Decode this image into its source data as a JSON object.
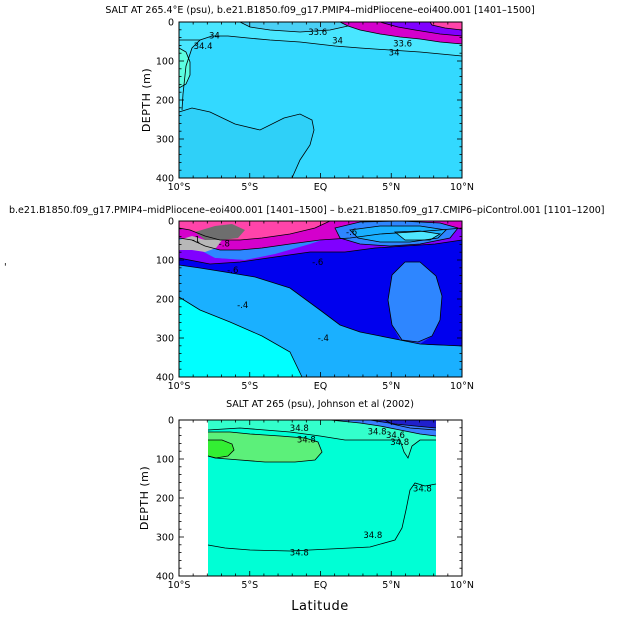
{
  "chart_data": [
    {
      "type": "contour",
      "title": "SALT AT 265.4°E (psu), b.e21.B1850.f09_g17.PMIP4–midPliocene–eoi400.001  [1401–1500]",
      "xlabel": "",
      "ylabel": "DEPTH  (m)",
      "x_range": [
        -10,
        10
      ],
      "y_range": [
        0,
        400
      ],
      "x_ticks": [
        "10°S",
        "5°S",
        "EQ",
        "5°N",
        "10°N"
      ],
      "y_ticks": [
        "0",
        "100",
        "200",
        "300",
        "400"
      ],
      "contour_labels": [
        {
          "text": "34",
          "lat": -7.5,
          "depth": 35
        },
        {
          "text": "34.4",
          "lat": -8.3,
          "depth": 62
        },
        {
          "text": "33.6",
          "lat": -0.2,
          "depth": 25
        },
        {
          "text": "33.6",
          "lat": 5.8,
          "depth": 55
        },
        {
          "text": "34",
          "lat": 1.2,
          "depth": 48
        },
        {
          "text": "34",
          "lat": 5.2,
          "depth": 78
        }
      ]
    },
    {
      "type": "contour",
      "title": "b.e21.B1850.f09_g17.PMIP4–midPliocene–eoi400.001  [1401–1500]  –  b.e21.B1850.f09_g17.CMIP6–piControl.001  [1101–1200]",
      "xlabel": "",
      "ylabel": "",
      "x_range": [
        -10,
        10
      ],
      "y_range": [
        0,
        400
      ],
      "x_ticks": [
        "10°S",
        "5°S",
        "EQ",
        "5°N",
        "10°N"
      ],
      "y_ticks": [
        "0",
        "100",
        "200",
        "300",
        "400"
      ],
      "contour_labels": [
        {
          "text": "-1",
          "lat": -8.8,
          "depth": 48
        },
        {
          "text": "-.8",
          "lat": -6.8,
          "depth": 58
        },
        {
          "text": "-.6",
          "lat": -6.2,
          "depth": 125
        },
        {
          "text": "-.6",
          "lat": -0.2,
          "depth": 105
        },
        {
          "text": "-.6",
          "lat": 2.2,
          "depth": 28
        },
        {
          "text": "-.4",
          "lat": -5.5,
          "depth": 215
        },
        {
          "text": "-.4",
          "lat": 0.2,
          "depth": 300
        }
      ]
    },
    {
      "type": "contour",
      "title": "SALT AT 265 (psu), Johnson et al (2002)",
      "xlabel": "Latitude",
      "ylabel": "DEPTH  (m)",
      "x_range": [
        -10,
        10
      ],
      "y_range": [
        0,
        400
      ],
      "data_x_extent": [
        -8,
        8
      ],
      "x_ticks": [
        "10°S",
        "5°S",
        "EQ",
        "5°N",
        "10°N"
      ],
      "y_ticks": [
        "0",
        "100",
        "200",
        "300",
        "400"
      ],
      "contour_labels": [
        {
          "text": "34.8",
          "lat": -1.5,
          "depth": 20
        },
        {
          "text": "34.8",
          "lat": -1.0,
          "depth": 50
        },
        {
          "text": "34.8",
          "lat": 4.0,
          "depth": 30
        },
        {
          "text": "34.8",
          "lat": 5.6,
          "depth": 57
        },
        {
          "text": "34.8",
          "lat": 7.2,
          "depth": 175
        },
        {
          "text": "34.8",
          "lat": 3.7,
          "depth": 295
        },
        {
          "text": "34.8",
          "lat": -1.5,
          "depth": 340
        },
        {
          "text": "34.6",
          "lat": 5.3,
          "depth": 38
        }
      ]
    }
  ]
}
